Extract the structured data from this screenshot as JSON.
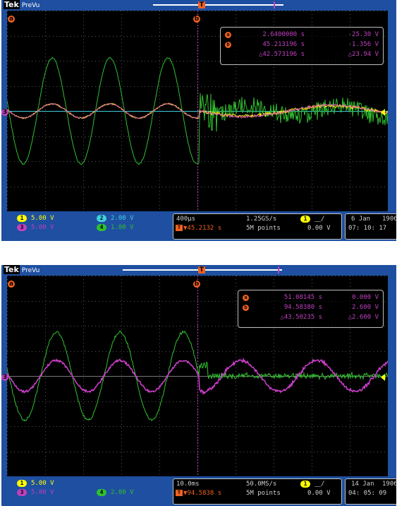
{
  "brand": "Tek",
  "mode": "PreVu",
  "scopes": [
    {
      "cursor_a": {
        "badge": "a",
        "time": "2.6400000 s",
        "value": "-25.30 V"
      },
      "cursor_b": {
        "badge": "b",
        "time": "45.213196 s",
        "value": "-1.356 V"
      },
      "delta": {
        "time": "△42.573196 s",
        "value": "△23.94 V"
      },
      "channels": [
        {
          "num": "1",
          "scale": "5.00 V",
          "color": "#ffff00"
        },
        {
          "num": "2",
          "scale": "2.00 V",
          "color": "#40d0e0"
        },
        {
          "num": "3",
          "scale": "5.00 V",
          "color": "#c040c0"
        },
        {
          "num": "4",
          "scale": "1.00 V",
          "color": "#30c030"
        }
      ],
      "timebase": "400µs",
      "sample_rate": "1.25GS/s",
      "position": "▼45.2132 s",
      "record_length": "5M points",
      "trigger_channel": "1",
      "trigger_slope": "⎽/",
      "trigger_level": "0.00 V",
      "date": "6 Jan",
      "year": "1906",
      "time": "07: 10: 17"
    },
    {
      "cursor_a": {
        "badge": "a",
        "time": "51.08145 s",
        "value": "0.000 V"
      },
      "cursor_b": {
        "badge": "b",
        "time": "94.58380 s",
        "value": "2.600 V"
      },
      "delta": {
        "time": "△43.50235 s",
        "value": "△2.600 V"
      },
      "channels": [
        {
          "num": "1",
          "scale": "5.00 V",
          "color": "#ffff00"
        },
        {
          "num": "3",
          "scale": "5.00 V",
          "color": "#c040c0"
        },
        {
          "num": "4",
          "scale": "2.00 V",
          "color": "#30c030"
        }
      ],
      "timebase": "10.0ms",
      "sample_rate": "50.0MS/s",
      "position": "▼94.5838 s",
      "record_length": "5M points",
      "trigger_channel": "1",
      "trigger_slope": "⎽/",
      "trigger_level": "0.00 V",
      "date": "14 Jan",
      "year": "1906",
      "time": "04: 05: 09"
    }
  ],
  "markers": {
    "trigger_top": "T",
    "cursor_b": "b",
    "ref_left": "a",
    "ch3_left": "3",
    "trigger_icon": "T"
  },
  "colors": {
    "bezel": "#1e4fa0",
    "grid": "#6a6a6a",
    "ch1": "#ffff00",
    "ch3": "#c040c0",
    "ch4": "#30c030",
    "cursor": "#f06020",
    "ch2": "#40d0e0"
  }
}
